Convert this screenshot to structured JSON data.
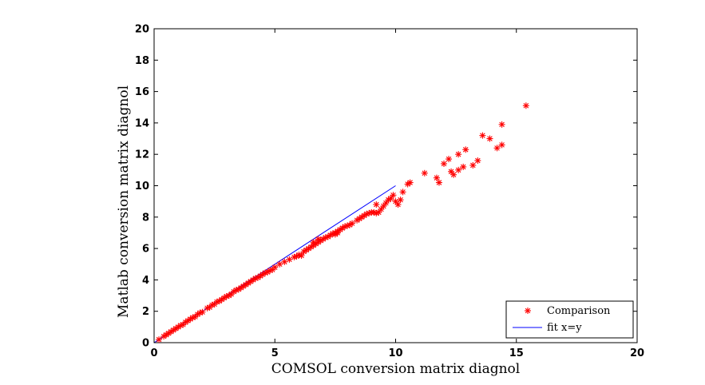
{
  "chart_data": {
    "type": "scatter",
    "title": "",
    "xlabel": "COMSOL conversion matrix diagnol",
    "ylabel": "Matlab conversion matrix diagnol",
    "xlim": [
      0,
      20
    ],
    "ylim": [
      0,
      20
    ],
    "xticks": [
      0,
      5,
      10,
      15,
      20
    ],
    "yticks": [
      0,
      2,
      4,
      6,
      8,
      10,
      12,
      14,
      16,
      18,
      20
    ],
    "legend_position": "bottom-right",
    "grid": false,
    "colors": {
      "marker": "#ff0000",
      "fit_line": "#0000ff",
      "axes": "#000000"
    },
    "series": [
      {
        "name": "Comparison",
        "type": "scatter",
        "marker": "asterisk",
        "points": [
          [
            0.2,
            0.2
          ],
          [
            0.4,
            0.4
          ],
          [
            0.5,
            0.5
          ],
          [
            0.6,
            0.6
          ],
          [
            0.7,
            0.7
          ],
          [
            0.8,
            0.8
          ],
          [
            0.9,
            0.9
          ],
          [
            1.0,
            1.0
          ],
          [
            1.1,
            1.1
          ],
          [
            1.2,
            1.15
          ],
          [
            1.3,
            1.3
          ],
          [
            1.4,
            1.4
          ],
          [
            1.5,
            1.5
          ],
          [
            1.6,
            1.6
          ],
          [
            1.7,
            1.65
          ],
          [
            1.8,
            1.8
          ],
          [
            1.9,
            1.9
          ],
          [
            2.0,
            1.95
          ],
          [
            2.2,
            2.2
          ],
          [
            2.4,
            2.4
          ],
          [
            2.5,
            2.45
          ],
          [
            2.6,
            2.6
          ],
          [
            2.7,
            2.65
          ],
          [
            2.8,
            2.75
          ],
          [
            2.9,
            2.85
          ],
          [
            3.0,
            2.95
          ],
          [
            3.2,
            3.1
          ],
          [
            3.3,
            3.25
          ],
          [
            3.4,
            3.35
          ],
          [
            3.5,
            3.4
          ],
          [
            3.6,
            3.5
          ],
          [
            3.7,
            3.6
          ],
          [
            3.8,
            3.7
          ],
          [
            3.9,
            3.8
          ],
          [
            4.0,
            3.9
          ],
          [
            4.1,
            4.0
          ],
          [
            4.2,
            4.1
          ],
          [
            4.3,
            4.15
          ],
          [
            4.4,
            4.25
          ],
          [
            4.5,
            4.35
          ],
          [
            4.6,
            4.45
          ],
          [
            4.7,
            4.5
          ],
          [
            4.8,
            4.6
          ],
          [
            5.0,
            4.8
          ],
          [
            5.2,
            5.0
          ],
          [
            5.4,
            5.15
          ],
          [
            5.6,
            5.3
          ],
          [
            5.8,
            5.45
          ],
          [
            6.0,
            5.6
          ],
          [
            6.1,
            5.55
          ],
          [
            6.2,
            5.8
          ],
          [
            6.3,
            5.9
          ],
          [
            6.4,
            6.0
          ],
          [
            6.5,
            6.1
          ],
          [
            6.6,
            6.2
          ],
          [
            6.7,
            6.3
          ],
          [
            6.8,
            6.4
          ],
          [
            6.9,
            6.5
          ],
          [
            7.0,
            6.6
          ],
          [
            7.1,
            6.7
          ],
          [
            7.2,
            6.75
          ],
          [
            7.3,
            6.85
          ],
          [
            7.4,
            6.95
          ],
          [
            7.5,
            7.0
          ],
          [
            7.6,
            7.1
          ],
          [
            7.7,
            7.2
          ],
          [
            7.8,
            7.3
          ],
          [
            7.9,
            7.4
          ],
          [
            8.0,
            7.45
          ],
          [
            8.2,
            7.6
          ],
          [
            8.4,
            7.8
          ],
          [
            8.5,
            7.9
          ],
          [
            8.6,
            8.0
          ],
          [
            8.7,
            8.1
          ],
          [
            8.8,
            8.2
          ],
          [
            8.9,
            8.25
          ],
          [
            9.0,
            8.3
          ],
          [
            9.1,
            8.3
          ],
          [
            9.2,
            8.25
          ],
          [
            9.3,
            8.3
          ],
          [
            9.4,
            8.5
          ],
          [
            9.5,
            8.7
          ],
          [
            9.6,
            8.9
          ],
          [
            9.7,
            9.1
          ],
          [
            9.8,
            9.2
          ],
          [
            9.9,
            9.4
          ],
          [
            10.0,
            9.0
          ],
          [
            10.1,
            8.8
          ],
          [
            10.2,
            9.1
          ],
          [
            10.3,
            9.6
          ],
          [
            10.5,
            10.1
          ],
          [
            10.6,
            10.2
          ],
          [
            11.2,
            10.8
          ],
          [
            11.7,
            10.5
          ],
          [
            11.8,
            10.2
          ],
          [
            12.0,
            11.4
          ],
          [
            12.2,
            11.7
          ],
          [
            12.3,
            10.9
          ],
          [
            12.4,
            10.7
          ],
          [
            12.6,
            11.0
          ],
          [
            12.8,
            11.2
          ],
          [
            12.6,
            12.0
          ],
          [
            12.9,
            12.3
          ],
          [
            13.2,
            11.3
          ],
          [
            13.4,
            11.6
          ],
          [
            13.6,
            13.2
          ],
          [
            13.9,
            13.0
          ],
          [
            14.2,
            12.4
          ],
          [
            14.4,
            12.6
          ],
          [
            14.4,
            13.9
          ],
          [
            15.4,
            15.1
          ],
          [
            6.8,
            6.6
          ],
          [
            7.6,
            7.0
          ],
          [
            5.9,
            5.5
          ],
          [
            4.9,
            4.65
          ],
          [
            3.1,
            3.0
          ],
          [
            2.3,
            2.25
          ],
          [
            8.1,
            7.5
          ],
          [
            9.2,
            8.8
          ],
          [
            7.5,
            6.9
          ],
          [
            6.6,
            6.4
          ]
        ]
      },
      {
        "name": "fit x=y",
        "type": "line",
        "x": [
          0,
          10
        ],
        "y": [
          0,
          10
        ]
      }
    ]
  }
}
